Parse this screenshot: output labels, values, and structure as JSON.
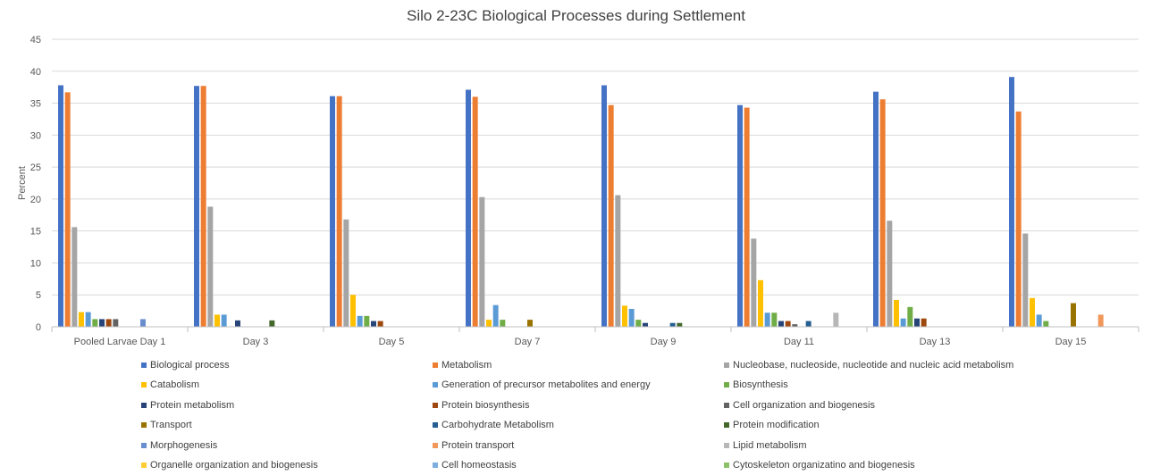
{
  "chart_data": {
    "type": "bar",
    "title": "Silo 2-23C Biological Processes during Settlement",
    "xlabel": "",
    "ylabel": "Percent",
    "ylim": [
      0,
      45
    ],
    "yticks": [
      0,
      5,
      10,
      15,
      20,
      25,
      30,
      35,
      40,
      45
    ],
    "grid": true,
    "legend_position": "bottom",
    "categories": [
      "Pooled Larvae Day 1",
      "Day 3",
      "Day 5",
      "Day 7",
      "Day 9",
      "Day 11",
      "Day 13",
      "Day 15"
    ],
    "series": [
      {
        "name": "Biological process",
        "color": "#4472c4",
        "values": [
          37.8,
          37.7,
          36.1,
          37.1,
          37.8,
          34.7,
          36.8,
          39.1
        ]
      },
      {
        "name": "Metabolism",
        "color": "#ed7d31",
        "values": [
          36.7,
          37.7,
          36.1,
          36.0,
          34.7,
          34.3,
          35.6,
          33.7
        ]
      },
      {
        "name": "Nucleobase, nucleoside, nucleotide and nucleic acid metabolism",
        "color": "#a5a5a5",
        "values": [
          15.6,
          18.8,
          16.8,
          20.3,
          20.6,
          13.8,
          16.6,
          14.6
        ]
      },
      {
        "name": "Catabolism",
        "color": "#ffc000",
        "values": [
          2.3,
          1.9,
          5.0,
          1.1,
          3.3,
          7.3,
          4.2,
          4.5
        ]
      },
      {
        "name": "Generation of precursor metabolites and energy",
        "color": "#5b9bd5",
        "values": [
          2.3,
          1.9,
          1.7,
          3.4,
          2.8,
          2.2,
          1.3,
          1.9
        ]
      },
      {
        "name": "Biosynthesis",
        "color": "#70ad47",
        "values": [
          1.2,
          0,
          1.7,
          1.1,
          1.1,
          2.2,
          3.1,
          0.9
        ]
      },
      {
        "name": "Protein metabolism",
        "color": "#264478",
        "values": [
          1.2,
          1.0,
          0.9,
          0,
          0.6,
          0.9,
          1.3,
          0
        ]
      },
      {
        "name": "Protein biosynthesis",
        "color": "#9e480e",
        "values": [
          1.2,
          0,
          0.9,
          0,
          0,
          0.9,
          1.3,
          0
        ]
      },
      {
        "name": "Cell organization and biogenesis",
        "color": "#636363",
        "values": [
          1.2,
          0,
          0,
          0,
          0,
          0.4,
          0,
          0
        ]
      },
      {
        "name": "Transport",
        "color": "#997300",
        "values": [
          0,
          0,
          0,
          1.1,
          0,
          0,
          0,
          3.7
        ]
      },
      {
        "name": "Carbohydrate Metabolism",
        "color": "#255e91",
        "values": [
          0,
          0,
          0,
          0,
          0.6,
          0.9,
          0,
          0
        ]
      },
      {
        "name": "Protein modification",
        "color": "#43682b",
        "values": [
          0,
          1.0,
          0,
          0,
          0.6,
          0,
          0,
          0
        ]
      },
      {
        "name": "Morphogenesis",
        "color": "#698ed0",
        "values": [
          1.2,
          0,
          0,
          0,
          0,
          0,
          0,
          0
        ]
      },
      {
        "name": "Protein transport",
        "color": "#f1975a",
        "values": [
          0,
          0,
          0,
          0,
          0,
          0,
          0,
          1.9
        ]
      },
      {
        "name": "Lipid metabolism",
        "color": "#b7b7b7",
        "values": [
          0,
          0,
          0,
          0,
          0,
          2.2,
          0,
          0
        ]
      },
      {
        "name": "Organelle organization and biogenesis",
        "color": "#ffcd33",
        "values": [
          0,
          0,
          0,
          0,
          0,
          0,
          0,
          0
        ]
      },
      {
        "name": "Cell homeostasis",
        "color": "#7cafdd",
        "values": [
          0,
          0,
          0,
          0,
          0,
          0,
          0,
          0
        ]
      },
      {
        "name": "Cytoskeleton organizatino and biogenesis",
        "color": "#8cc168",
        "values": [
          0,
          0,
          0,
          0,
          0,
          0,
          0,
          0
        ]
      }
    ]
  }
}
